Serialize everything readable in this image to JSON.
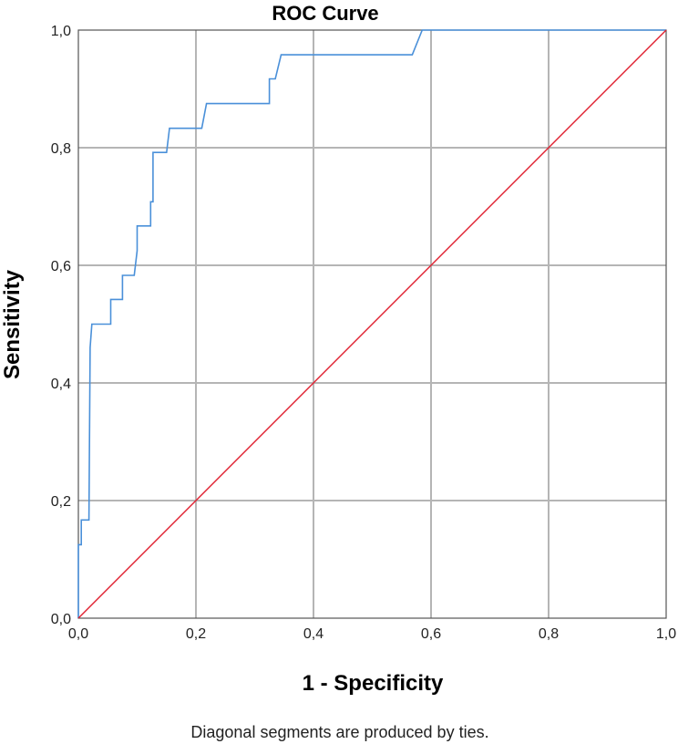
{
  "chart_data": {
    "type": "line",
    "title": "ROC Curve",
    "xlabel": "1 - Specificity",
    "ylabel": "Sensitivity",
    "xlim": [
      0,
      1
    ],
    "ylim": [
      0,
      1
    ],
    "x_ticks": [
      "0,0",
      "0,2",
      "0,4",
      "0,6",
      "0,8",
      "1,0"
    ],
    "y_ticks": [
      "0,0",
      "0,2",
      "0,4",
      "0,6",
      "0,8",
      "1,0"
    ],
    "grid": true,
    "footnote": "Diagonal segments are produced by ties.",
    "series": [
      {
        "color": "#4a90d9",
        "points": [
          [
            0.0,
            0.0
          ],
          [
            0.0,
            0.125
          ],
          [
            0.005,
            0.125
          ],
          [
            0.005,
            0.167
          ],
          [
            0.018,
            0.167
          ],
          [
            0.02,
            0.46
          ],
          [
            0.023,
            0.5
          ],
          [
            0.055,
            0.5
          ],
          [
            0.055,
            0.542
          ],
          [
            0.075,
            0.542
          ],
          [
            0.075,
            0.583
          ],
          [
            0.095,
            0.583
          ],
          [
            0.1,
            0.625
          ],
          [
            0.1,
            0.667
          ],
          [
            0.123,
            0.667
          ],
          [
            0.123,
            0.708
          ],
          [
            0.127,
            0.708
          ],
          [
            0.127,
            0.792
          ],
          [
            0.15,
            0.792
          ],
          [
            0.155,
            0.833
          ],
          [
            0.21,
            0.833
          ],
          [
            0.218,
            0.875
          ],
          [
            0.325,
            0.875
          ],
          [
            0.325,
            0.917
          ],
          [
            0.335,
            0.917
          ],
          [
            0.345,
            0.958
          ],
          [
            0.568,
            0.958
          ],
          [
            0.585,
            1.0
          ],
          [
            1.0,
            1.0
          ]
        ]
      },
      {
        "color": "#e02030",
        "points": [
          [
            0,
            0
          ],
          [
            1,
            1
          ]
        ]
      }
    ]
  }
}
